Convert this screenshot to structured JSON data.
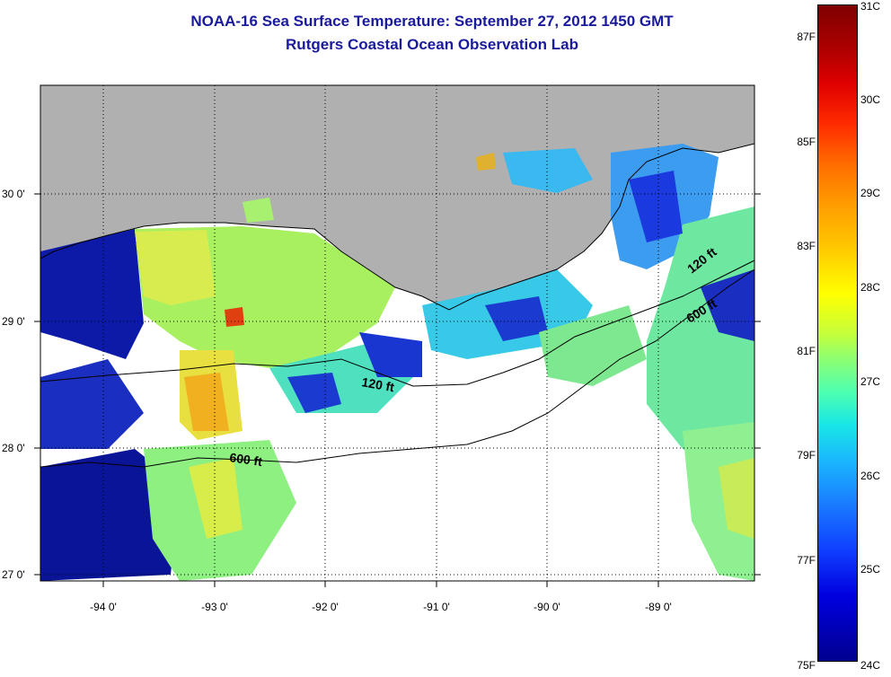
{
  "title": {
    "line1": "NOAA-16 Sea Surface Temperature:  September 27, 2012 1450 GMT",
    "line2": "Rutgers Coastal Ocean Observation Lab"
  },
  "map": {
    "lat_labels": [
      "30 0'",
      "29 0'",
      "28 0'",
      "27 0'"
    ],
    "lon_labels": [
      "-94 0'",
      "-93 0'",
      "-92 0'",
      "-91 0'",
      "-90 0'",
      "-89 0'"
    ],
    "contour_labels": [
      "120 ft",
      "600 ft",
      "120 ft",
      "600 ft"
    ],
    "colors": {
      "land": "#b0b0b0",
      "no_data": "#ffffff",
      "frame": "#000000"
    }
  },
  "colorbar": {
    "fahrenheit_labels": [
      "87F",
      "85F",
      "83F",
      "81F",
      "79F",
      "77F",
      "75F"
    ],
    "celsius_labels": [
      "31C",
      "30C",
      "29C",
      "28C",
      "27C",
      "26C",
      "25C",
      "24C"
    ]
  }
}
